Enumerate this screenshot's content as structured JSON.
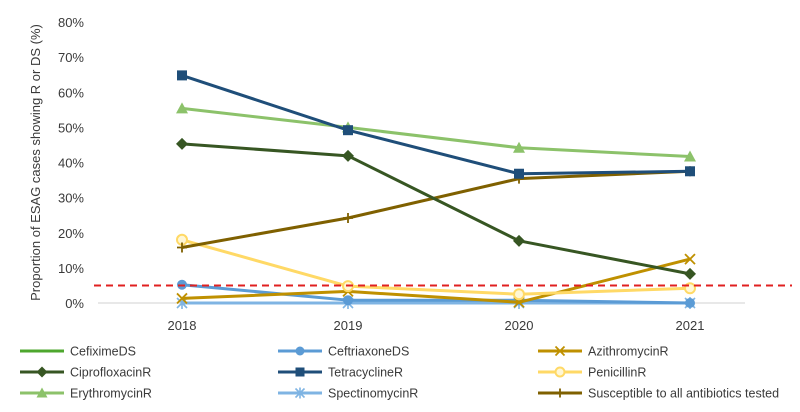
{
  "chart_data": {
    "type": "line",
    "title": "",
    "xlabel": "",
    "ylabel": "Proportion of ESAG cases showing R or DS (%)",
    "categories": [
      "2018",
      "2019",
      "2020",
      "2021"
    ],
    "ylim": [
      0,
      80
    ],
    "yticks": [
      0,
      10,
      20,
      30,
      40,
      50,
      60,
      70,
      80
    ],
    "ytick_suffix": "%",
    "grid": false,
    "threshold": {
      "value": 5,
      "style": "dashed",
      "color": "#e02020"
    },
    "legend_position": "bottom",
    "series": [
      {
        "name": "CefiximeDS",
        "values": [
          0,
          0,
          0,
          0
        ],
        "color": "#4ea72e",
        "marker": "none"
      },
      {
        "name": "CeftriaxoneDS",
        "values": [
          5.2,
          0.8,
          0.8,
          0
        ],
        "color": "#5b9bd5",
        "marker": "circle"
      },
      {
        "name": "AzithromycinR",
        "values": [
          1.3,
          3.3,
          0.2,
          12.5
        ],
        "color": "#bf9000",
        "marker": "x"
      },
      {
        "name": "CiprofloxacinR",
        "values": [
          45.3,
          41.9,
          17.7,
          8.3
        ],
        "color": "#375623",
        "marker": "diamond"
      },
      {
        "name": "TetracyclineR",
        "values": [
          64.8,
          49.2,
          36.8,
          37.5
        ],
        "color": "#1f4e79",
        "marker": "square"
      },
      {
        "name": "PenicillinR",
        "values": [
          18.0,
          4.8,
          2.5,
          4.2
        ],
        "color": "#ffd966",
        "marker": "circle-open"
      },
      {
        "name": "ErythromycinR",
        "values": [
          55.4,
          50.0,
          44.2,
          41.7
        ],
        "color": "#8cc26a",
        "marker": "triangle"
      },
      {
        "name": "SpectinomycinR",
        "values": [
          0,
          0,
          0,
          0
        ],
        "color": "#7fb4e3",
        "marker": "asterisk"
      },
      {
        "name": "Susceptible to all antibiotics tested",
        "values": [
          15.8,
          24.2,
          35.4,
          37.5
        ],
        "color": "#7f6000",
        "marker": "plus"
      }
    ]
  }
}
